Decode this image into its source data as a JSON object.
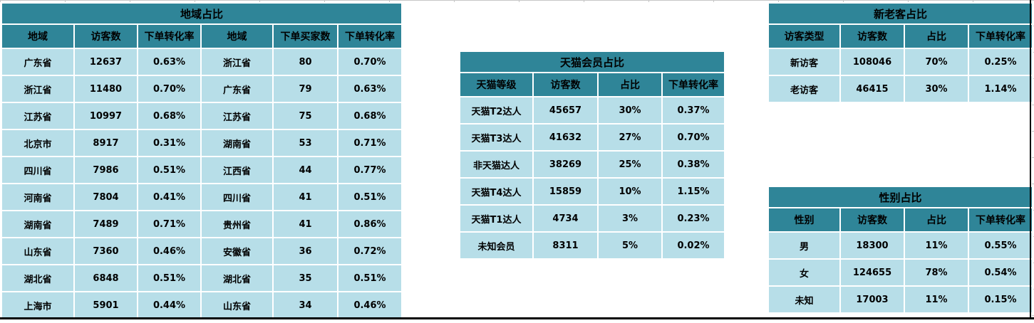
{
  "colors": {
    "header_teal": "#2F8598",
    "cell_blue": "#B7DEE8",
    "border_black": "#000000",
    "gridline_gray": "#C6C6C6",
    "text": "#000000"
  },
  "tables": {
    "region": {
      "title": "地域占比",
      "headers": [
        "地域",
        "访客数",
        "下单转化率",
        "地域",
        "下单买家数",
        "下单转化率"
      ],
      "rows": [
        [
          "广东省",
          "12637",
          "0.63%",
          "浙江省",
          "80",
          "0.70%"
        ],
        [
          "浙江省",
          "11480",
          "0.70%",
          "广东省",
          "79",
          "0.63%"
        ],
        [
          "江苏省",
          "10997",
          "0.68%",
          "江苏省",
          "75",
          "0.68%"
        ],
        [
          "北京市",
          "8917",
          "0.31%",
          "湖南省",
          "53",
          "0.71%"
        ],
        [
          "四川省",
          "7986",
          "0.51%",
          "江西省",
          "44",
          "0.77%"
        ],
        [
          "河南省",
          "7804",
          "0.41%",
          "四川省",
          "41",
          "0.51%"
        ],
        [
          "湖南省",
          "7489",
          "0.71%",
          "贵州省",
          "41",
          "0.86%"
        ],
        [
          "山东省",
          "7360",
          "0.46%",
          "安徽省",
          "36",
          "0.72%"
        ],
        [
          "湖北省",
          "6848",
          "0.51%",
          "湖北省",
          "35",
          "0.51%"
        ],
        [
          "上海市",
          "5901",
          "0.44%",
          "山东省",
          "34",
          "0.46%"
        ]
      ]
    },
    "tmall": {
      "title": "天猫会员占比",
      "headers": [
        "天猫等级",
        "访客数",
        "占比",
        "下单转化率"
      ],
      "rows": [
        [
          "天猫T2达人",
          "45657",
          "30%",
          "0.37%"
        ],
        [
          "天猫T3达人",
          "41632",
          "27%",
          "0.70%"
        ],
        [
          "非天猫达人",
          "38269",
          "25%",
          "0.38%"
        ],
        [
          "天猫T4达人",
          "15859",
          "10%",
          "1.15%"
        ],
        [
          "天猫T1达人",
          "4734",
          "3%",
          "0.23%"
        ],
        [
          "未知会员",
          "8311",
          "5%",
          "0.02%"
        ]
      ]
    },
    "visitor": {
      "title": "新老客占比",
      "headers": [
        "访客类型",
        "访客数",
        "占比",
        "下单转化率"
      ],
      "rows": [
        [
          "新访客",
          "108046",
          "70%",
          "0.25%"
        ],
        [
          "老访客",
          "46415",
          "30%",
          "1.14%"
        ]
      ]
    },
    "gender": {
      "title": "性别占比",
      "headers": [
        "性别",
        "访客数",
        "占比",
        "下单转化率"
      ],
      "rows": [
        [
          "男",
          "18300",
          "11%",
          "0.55%"
        ],
        [
          "女",
          "124655",
          "78%",
          "0.54%"
        ],
        [
          "未知",
          "17003",
          "11%",
          "0.15%"
        ]
      ]
    }
  }
}
